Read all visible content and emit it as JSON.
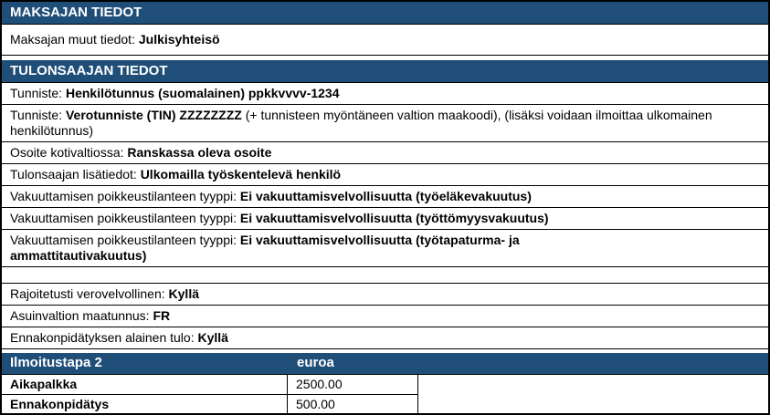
{
  "colors": {
    "header_bg": "#1F4E79",
    "header_text": "#FFFFFF",
    "body_text": "#000000",
    "border": "#000000",
    "background": "#FFFFFF"
  },
  "payer_section": {
    "title": "MAKSAJAN TIEDOT",
    "rows": [
      {
        "label": "Maksajan muut tiedot:",
        "value": "Julkisyhteisö",
        "suffix": ""
      }
    ]
  },
  "recipient_section": {
    "title": "TULONSAAJAN TIEDOT",
    "rows": [
      {
        "label": "Tunniste:",
        "value": "Henkilötunnus (suomalainen) ppkkvvvv-1234",
        "suffix": ""
      },
      {
        "label": "Tunniste:",
        "value": "Verotunniste (TIN) ZZZZZZZZ",
        "suffix": " (+ tunnisteen myöntäneen valtion maakoodi), (lisäksi voidaan ilmoittaa ulkomainen henkilötunnus)"
      },
      {
        "label": "Osoite kotivaltiossa:",
        "value": "Ranskassa oleva osoite",
        "suffix": ""
      },
      {
        "label": "Tulonsaajan lisätiedot:",
        "value": "Ulkomailla työskentelevä henkilö",
        "suffix": ""
      },
      {
        "label": "Vakuuttamisen poikkeustilanteen tyyppi:",
        "value": "Ei vakuuttamisvelvollisuutta (työeläkevakuutus)",
        "suffix": ""
      },
      {
        "label": "Vakuuttamisen poikkeustilanteen tyyppi:",
        "value": "Ei vakuuttamisvelvollisuutta (työttömyysvakuutus)",
        "suffix": ""
      },
      {
        "label": "Vakuuttamisen poikkeustilanteen tyyppi:",
        "value": "Ei vakuuttamisvelvollisuutta (työtapaturma- ja\nammattitautivakuutus)",
        "suffix": ""
      },
      {
        "label": "Rajoitetusti verovelvollinen:",
        "value": "Kyllä",
        "suffix": ""
      },
      {
        "label": "Asuinvaltion maatunnus:",
        "value": "FR",
        "suffix": ""
      },
      {
        "label": "Ennakonpidätyksen alainen tulo:",
        "value": "Kyllä",
        "suffix": ""
      }
    ]
  },
  "reporting_section": {
    "title": "Ilmoitustapa 2",
    "unit_column_header": "euroa",
    "rows": [
      {
        "label": "Aikapalkka",
        "amount": "2500.00"
      },
      {
        "label": "Ennakonpidätys",
        "amount": "500.00"
      }
    ]
  }
}
